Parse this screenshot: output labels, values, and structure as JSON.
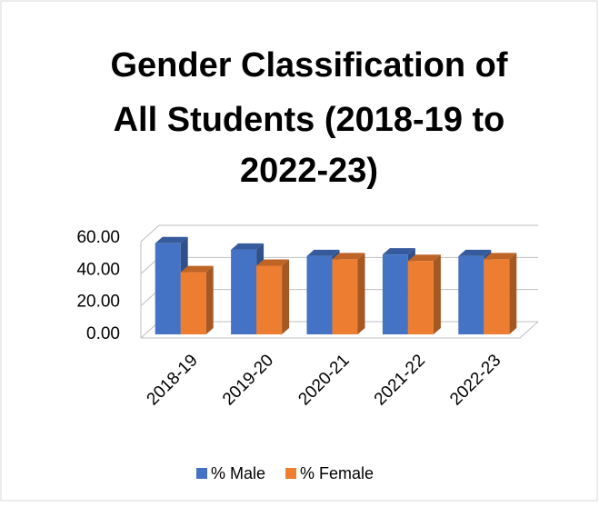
{
  "chart_data": {
    "type": "bar3d",
    "title_lines": [
      "Gender Classification of",
      "All Students (2018-19 to",
      "2022-23)"
    ],
    "categories": [
      "2018-19",
      "2019-20",
      "2020-21",
      "2021-22",
      "2022-23"
    ],
    "series": [
      {
        "name": "% Male",
        "color": "#4472c4",
        "values": [
          59,
          55,
          51,
          52,
          51
        ]
      },
      {
        "name": "% Female",
        "color": "#ed7d31",
        "values": [
          41,
          45,
          49,
          48,
          49
        ]
      }
    ],
    "ylim": [
      0,
      60
    ],
    "yticks": [
      {
        "value": 0,
        "label": "0.00"
      },
      {
        "value": 20,
        "label": "20.00"
      },
      {
        "value": 40,
        "label": "40.00"
      },
      {
        "value": 60,
        "label": "60.00"
      }
    ],
    "grid": true,
    "legend": "bottom"
  }
}
